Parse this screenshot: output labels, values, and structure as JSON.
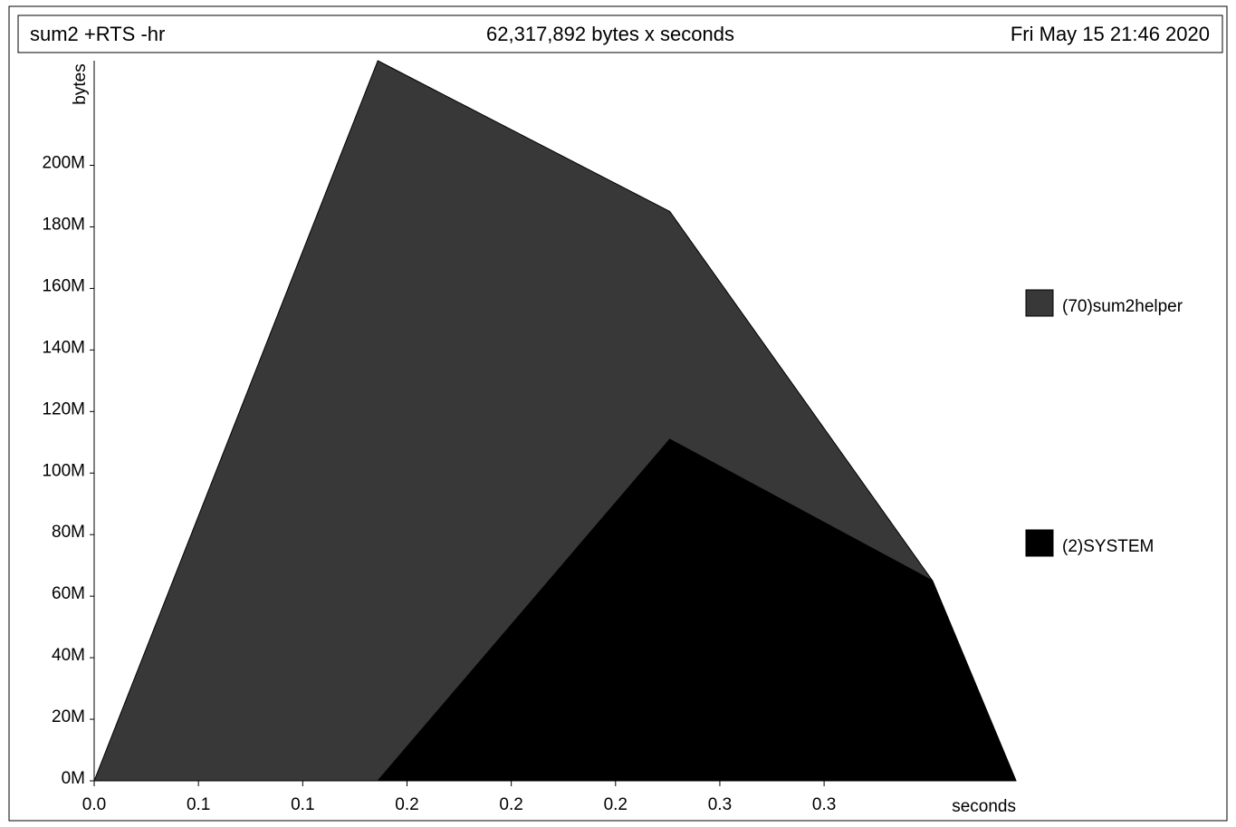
{
  "header": {
    "program": "sum2 +RTS -hr",
    "total": "62,317,892 bytes x seconds",
    "date": "Fri May 15 21:46 2020"
  },
  "chart_data": {
    "type": "area",
    "stacked": true,
    "xlabel": "seconds",
    "ylabel": "bytes",
    "x_ticks": [
      "0.0",
      "0.1",
      "0.1",
      "0.2",
      "0.2",
      "0.2",
      "0.3",
      "0.3"
    ],
    "y_ticks": [
      "0M",
      "20M",
      "40M",
      "60M",
      "80M",
      "100M",
      "120M",
      "140M",
      "160M",
      "180M",
      "200M"
    ],
    "x_tick_values": [
      0.0,
      0.05,
      0.1,
      0.15,
      0.2,
      0.25,
      0.3,
      0.35
    ],
    "xlim": [
      0,
      0.442
    ],
    "ylim": [
      0,
      234
    ],
    "x": [
      0,
      0.136,
      0.276,
      0.402,
      0.442
    ],
    "series": [
      {
        "name": "(70)sum2helper",
        "color": "#383838",
        "values": [
          0,
          234,
          74,
          0,
          0
        ]
      },
      {
        "name": "(2)SYSTEM",
        "color": "#000000",
        "values": [
          0,
          0,
          111,
          65,
          0
        ]
      }
    ],
    "legend_position": "right",
    "grid": false
  }
}
